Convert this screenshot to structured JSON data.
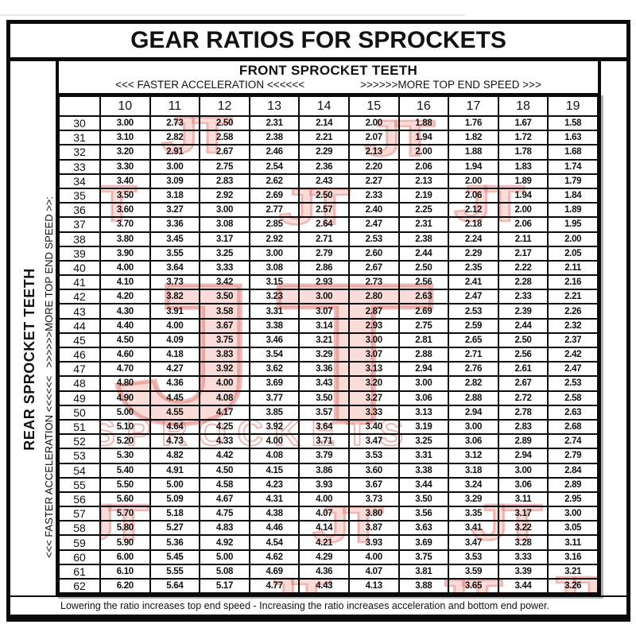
{
  "page": {
    "title": "GEAR RATIOS FOR SPROCKETS",
    "note": "Lowering the ratio increases top end speed - Increasing the ratio increases acceleration and bottom end power."
  },
  "top_header": {
    "label": "FRONT SPROCKET TEETH",
    "faster": "<<< FASTER  ACCELERATION <<<<<<",
    "top_end": ">>>>>>MORE TOP END SPEED >>>"
  },
  "side_header": {
    "label": "REAR SPROCKET TEETH",
    "faster": "<<< FASTER  ACCELERATION <<<<<<",
    "top_end": ">>>>>>MORE TOP END SPEED >>:"
  },
  "watermark": {
    "logo_text": "JT",
    "brand_text": "SPROCKETS",
    "fill_color": "#f5c4bd",
    "stroke_color": "#ce3c32"
  },
  "chart_data": {
    "type": "table",
    "title": "GEAR RATIOS FOR SPROCKETS",
    "columns_label": "FRONT SPROCKET TEETH",
    "rows_label": "REAR SPROCKET TEETH",
    "front_teeth": [
      "10",
      "11",
      "12",
      "13",
      "14",
      "15",
      "16",
      "17",
      "18",
      "19"
    ],
    "rows": [
      {
        "rear": "30",
        "ratios": [
          "3.00",
          "2.73",
          "2.50",
          "2.31",
          "2.14",
          "2.00",
          "1.88",
          "1.76",
          "1.67",
          "1.58"
        ]
      },
      {
        "rear": "31",
        "ratios": [
          "3.10",
          "2.82",
          "2.58",
          "2.38",
          "2.21",
          "2.07",
          "1.94",
          "1.82",
          "1.72",
          "1.63"
        ]
      },
      {
        "rear": "32",
        "ratios": [
          "3.20",
          "2.91",
          "2.67",
          "2.46",
          "2.29",
          "2.13",
          "2.00",
          "1.88",
          "1.78",
          "1.68"
        ]
      },
      {
        "rear": "33",
        "ratios": [
          "3.30",
          "3.00",
          "2.75",
          "2.54",
          "2.36",
          "2.20",
          "2.06",
          "1.94",
          "1.83",
          "1.74"
        ]
      },
      {
        "rear": "34",
        "ratios": [
          "3.40",
          "3.09",
          "2.83",
          "2.62",
          "2.43",
          "2.27",
          "2.13",
          "2.00",
          "1.89",
          "1.79"
        ]
      },
      {
        "rear": "35",
        "ratios": [
          "3.50",
          "3.18",
          "2.92",
          "2.69",
          "2.50",
          "2.33",
          "2.19",
          "2.06",
          "1.94",
          "1.84"
        ]
      },
      {
        "rear": "36",
        "ratios": [
          "3.60",
          "3.27",
          "3.00",
          "2.77",
          "2.57",
          "2.40",
          "2.25",
          "2.12",
          "2.00",
          "1.89"
        ]
      },
      {
        "rear": "37",
        "ratios": [
          "3.70",
          "3.36",
          "3.08",
          "2.85",
          "2.64",
          "2.47",
          "2.31",
          "2.18",
          "2.06",
          "1.95"
        ]
      },
      {
        "rear": "38",
        "ratios": [
          "3.80",
          "3.45",
          "3.17",
          "2.92",
          "2.71",
          "2.53",
          "2.38",
          "2.24",
          "2.11",
          "2.00"
        ]
      },
      {
        "rear": "39",
        "ratios": [
          "3.90",
          "3.55",
          "3.25",
          "3.00",
          "2.79",
          "2.60",
          "2.44",
          "2.29",
          "2.17",
          "2.05"
        ]
      },
      {
        "rear": "40",
        "ratios": [
          "4.00",
          "3.64",
          "3.33",
          "3.08",
          "2.86",
          "2.67",
          "2.50",
          "2.35",
          "2.22",
          "2.11"
        ]
      },
      {
        "rear": "41",
        "ratios": [
          "4.10",
          "3.73",
          "3.42",
          "3.15",
          "2.93",
          "2.73",
          "2.56",
          "2.41",
          "2.28",
          "2.16"
        ]
      },
      {
        "rear": "42",
        "ratios": [
          "4.20",
          "3.82",
          "3.50",
          "3.23",
          "3.00",
          "2.80",
          "2.63",
          "2.47",
          "2.33",
          "2.21"
        ]
      },
      {
        "rear": "43",
        "ratios": [
          "4.30",
          "3.91",
          "3.58",
          "3.31",
          "3.07",
          "2.87",
          "2.69",
          "2.53",
          "2.39",
          "2.26"
        ]
      },
      {
        "rear": "44",
        "ratios": [
          "4.40",
          "4.00",
          "3.67",
          "3.38",
          "3.14",
          "2.93",
          "2.75",
          "2.59",
          "2.44",
          "2.32"
        ]
      },
      {
        "rear": "45",
        "ratios": [
          "4.50",
          "4.09",
          "3.75",
          "3.46",
          "3.21",
          "3.00",
          "2.81",
          "2.65",
          "2.50",
          "2.37"
        ]
      },
      {
        "rear": "46",
        "ratios": [
          "4.60",
          "4.18",
          "3.83",
          "3.54",
          "3.29",
          "3.07",
          "2.88",
          "2.71",
          "2.56",
          "2.42"
        ]
      },
      {
        "rear": "47",
        "ratios": [
          "4.70",
          "4.27",
          "3.92",
          "3.62",
          "3.36",
          "3.13",
          "2.94",
          "2.76",
          "2.61",
          "2.47"
        ]
      },
      {
        "rear": "48",
        "ratios": [
          "4.80",
          "4.36",
          "4.00",
          "3.69",
          "3.43",
          "3.20",
          "3.00",
          "2.82",
          "2.67",
          "2.53"
        ]
      },
      {
        "rear": "49",
        "ratios": [
          "4.90",
          "4.45",
          "4.08",
          "3.77",
          "3.50",
          "3.27",
          "3.06",
          "2.88",
          "2.72",
          "2.58"
        ]
      },
      {
        "rear": "50",
        "ratios": [
          "5.00",
          "4.55",
          "4.17",
          "3.85",
          "3.57",
          "3.33",
          "3.13",
          "2.94",
          "2.78",
          "2.63"
        ]
      },
      {
        "rear": "51",
        "ratios": [
          "5.10",
          "4.64",
          "4.25",
          "3.92",
          "3.64",
          "3.40",
          "3.19",
          "3.00",
          "2.83",
          "2.68"
        ]
      },
      {
        "rear": "52",
        "ratios": [
          "5.20",
          "4.73",
          "4.33",
          "4.00",
          "3.71",
          "3.47",
          "3.25",
          "3.06",
          "2.89",
          "2.74"
        ]
      },
      {
        "rear": "53",
        "ratios": [
          "5.30",
          "4.82",
          "4.42",
          "4.08",
          "3.79",
          "3.53",
          "3.31",
          "3.12",
          "2.94",
          "2.79"
        ]
      },
      {
        "rear": "54",
        "ratios": [
          "5.40",
          "4.91",
          "4.50",
          "4.15",
          "3.86",
          "3.60",
          "3.38",
          "3.18",
          "3.00",
          "2.84"
        ]
      },
      {
        "rear": "55",
        "ratios": [
          "5.50",
          "5.00",
          "4.58",
          "4.23",
          "3.93",
          "3.67",
          "3.44",
          "3.24",
          "3.06",
          "2.89"
        ]
      },
      {
        "rear": "56",
        "ratios": [
          "5.60",
          "5.09",
          "4.67",
          "4.31",
          "4.00",
          "3.73",
          "3.50",
          "3.29",
          "3.11",
          "2.95"
        ]
      },
      {
        "rear": "57",
        "ratios": [
          "5.70",
          "5.18",
          "4.75",
          "4.38",
          "4.07",
          "3.80",
          "3.56",
          "3.35",
          "3.17",
          "3.00"
        ]
      },
      {
        "rear": "58",
        "ratios": [
          "5.80",
          "5.27",
          "4.83",
          "4.46",
          "4.14",
          "3.87",
          "3.63",
          "3.41",
          "3.22",
          "3.05"
        ]
      },
      {
        "rear": "59",
        "ratios": [
          "5.90",
          "5.36",
          "4.92",
          "4.54",
          "4.21",
          "3.93",
          "3.69",
          "3.47",
          "3.28",
          "3.11"
        ]
      },
      {
        "rear": "60",
        "ratios": [
          "6.00",
          "5.45",
          "5.00",
          "4.62",
          "4.29",
          "4.00",
          "3.75",
          "3.53",
          "3.33",
          "3.16"
        ]
      },
      {
        "rear": "61",
        "ratios": [
          "6.10",
          "5.55",
          "5.08",
          "4.69",
          "4.36",
          "4.07",
          "3.81",
          "3.59",
          "3.39",
          "3.21"
        ]
      },
      {
        "rear": "62",
        "ratios": [
          "6.20",
          "5.64",
          "5.17",
          "4.77",
          "4.43",
          "4.13",
          "3.88",
          "3.65",
          "3.44",
          "3.26"
        ]
      }
    ]
  }
}
